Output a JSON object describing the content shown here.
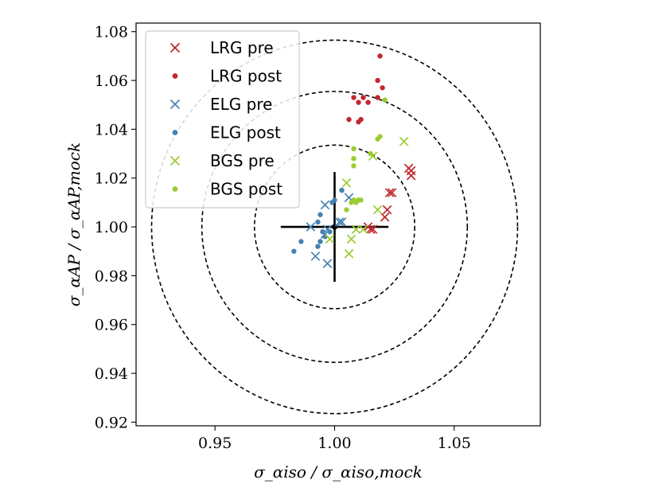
{
  "chart_data": {
    "type": "scatter",
    "xlabel": "σ_αiso / σ_αiso,mock",
    "ylabel": "σ_αAP / σ_αAP,mock",
    "xlim": [
      0.917,
      1.086
    ],
    "ylim": [
      0.9185,
      1.0835
    ],
    "xticks": [
      0.95,
      1.0,
      1.05
    ],
    "xtick_labels": [
      "0.95",
      "1.00",
      "1.05"
    ],
    "yticks": [
      0.92,
      0.94,
      0.96,
      0.98,
      1.0,
      1.02,
      1.04,
      1.06,
      1.08
    ],
    "ytick_labels": [
      "0.92",
      "0.94",
      "0.96",
      "0.98",
      "1.00",
      "1.02",
      "1.04",
      "1.06",
      "1.08"
    ],
    "circles": {
      "center": [
        1.0,
        1.0
      ],
      "radii": [
        0.0335,
        0.0555,
        0.0765
      ]
    },
    "errorbar": {
      "x": 1.0,
      "y": 1.0,
      "xerr": 0.0225,
      "yerr": 0.0225
    },
    "legend_location": "upper-left",
    "colors": {
      "LRG": "#c1272d",
      "ELG": "#4682b4",
      "BGS": "#9acd32"
    },
    "series": [
      {
        "name": "LRG pre",
        "group": "LRG",
        "marker": "x",
        "label": "LRG pre",
        "points": [
          [
            1.031,
            1.024
          ],
          [
            1.032,
            1.021
          ],
          [
            1.032,
            1.023
          ],
          [
            1.024,
            1.014
          ],
          [
            1.023,
            1.014
          ],
          [
            1.022,
            1.007
          ],
          [
            1.021,
            1.004
          ],
          [
            1.015,
            0.999
          ],
          [
            1.016,
            0.999
          ],
          [
            1.014,
            1.0
          ]
        ]
      },
      {
        "name": "LRG post",
        "group": "LRG",
        "marker": "dot",
        "label": "LRG post",
        "points": [
          [
            1.019,
            1.07
          ],
          [
            1.018,
            1.06
          ],
          [
            1.02,
            1.057
          ],
          [
            1.008,
            1.053
          ],
          [
            1.012,
            1.053
          ],
          [
            1.01,
            1.051
          ],
          [
            1.014,
            1.051
          ],
          [
            1.018,
            1.053
          ],
          [
            1.006,
            1.044
          ],
          [
            1.01,
            1.043
          ],
          [
            1.011,
            1.044
          ]
        ]
      },
      {
        "name": "ELG pre",
        "group": "ELG",
        "marker": "x",
        "label": "ELG pre",
        "points": [
          [
            0.99,
            1.0
          ],
          [
            0.996,
            1.009
          ],
          [
            0.997,
            0.999
          ],
          [
            0.996,
            0.997
          ],
          [
            0.992,
            0.988
          ],
          [
            0.997,
            0.985
          ],
          [
            1.002,
            1.002
          ],
          [
            1.003,
            1.002
          ],
          [
            1.006,
            1.012
          ]
        ]
      },
      {
        "name": "ELG post",
        "group": "ELG",
        "marker": "dot",
        "label": "ELG post",
        "points": [
          [
            1.0,
            1.011
          ],
          [
            0.999,
            1.01
          ],
          [
            1.003,
            1.015
          ],
          [
            0.994,
            1.005
          ],
          [
            0.993,
            1.002
          ],
          [
            0.995,
            0.998
          ],
          [
            0.996,
            0.996
          ],
          [
            0.994,
            0.994
          ],
          [
            0.993,
            0.992
          ],
          [
            0.986,
            0.994
          ],
          [
            0.983,
            0.99
          ],
          [
            0.998,
            0.998
          ]
        ]
      },
      {
        "name": "BGS pre",
        "group": "BGS",
        "marker": "x",
        "label": "BGS pre",
        "points": [
          [
            1.029,
            1.035
          ],
          [
            1.016,
            1.029
          ],
          [
            1.005,
            1.018
          ],
          [
            1.007,
            0.995
          ],
          [
            1.006,
            0.989
          ],
          [
            1.018,
            1.007
          ],
          [
            1.009,
            0.999
          ],
          [
            1.012,
            0.999
          ],
          [
            0.998,
            0.995
          ]
        ]
      },
      {
        "name": "BGS post",
        "group": "BGS",
        "marker": "dot",
        "label": "BGS post",
        "points": [
          [
            1.021,
            1.052
          ],
          [
            1.018,
            1.036
          ],
          [
            1.019,
            1.037
          ],
          [
            1.015,
            1.03
          ],
          [
            1.008,
            1.032
          ],
          [
            1.008,
            1.028
          ],
          [
            1.008,
            1.025
          ],
          [
            1.008,
            1.011
          ],
          [
            1.01,
            1.011
          ],
          [
            1.011,
            1.011
          ],
          [
            1.007,
            1.01
          ],
          [
            1.005,
            1.007
          ],
          [
            1.009,
            1.01
          ]
        ]
      }
    ]
  }
}
